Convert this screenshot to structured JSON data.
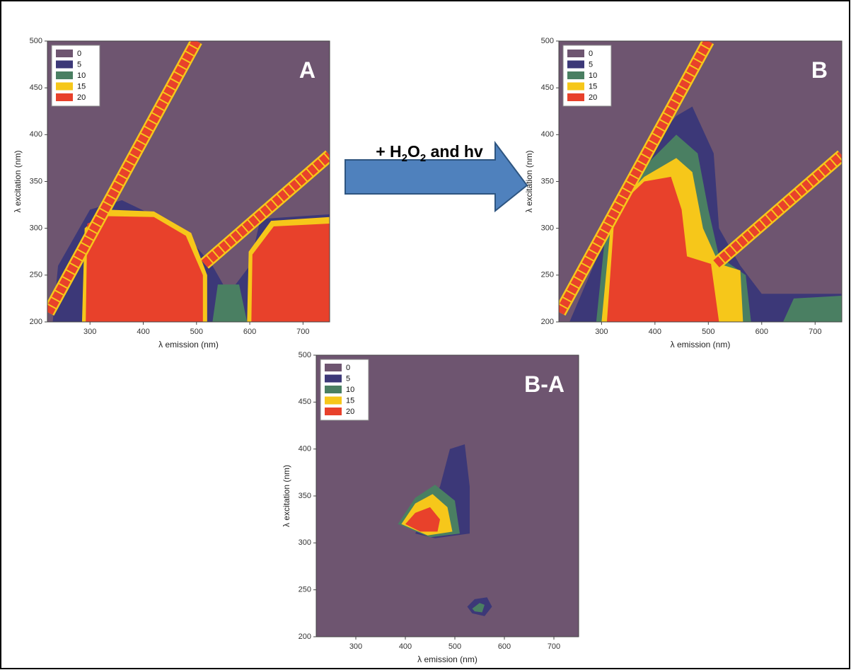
{
  "chart_data": [
    {
      "type": "contour",
      "title": "A",
      "x_label": "λ emission (nm)",
      "y_label": "λ excitation (nm)",
      "xlim": [
        220,
        750
      ],
      "ylim": [
        200,
        500
      ],
      "xticks": [
        300,
        400,
        500,
        600,
        700
      ],
      "yticks": [
        200,
        250,
        300,
        350,
        400,
        450,
        500
      ],
      "levels": [
        0,
        5,
        10,
        15,
        20
      ],
      "level_colors": [
        "#6e5570",
        "#3c3878",
        "#4a7f62",
        "#f6c71a",
        "#e8412b"
      ]
    },
    {
      "type": "contour",
      "title": "B",
      "x_label": "λ emission (nm)",
      "y_label": "λ excitation (nm)",
      "xlim": [
        220,
        750
      ],
      "ylim": [
        200,
        500
      ],
      "xticks": [
        300,
        400,
        500,
        600,
        700
      ],
      "yticks": [
        200,
        250,
        300,
        350,
        400,
        450,
        500
      ],
      "levels": [
        0,
        5,
        10,
        15,
        20
      ],
      "level_colors": [
        "#6e5570",
        "#3c3878",
        "#4a7f62",
        "#f6c71a",
        "#e8412b"
      ]
    },
    {
      "type": "contour",
      "title": "B-A",
      "x_label": "λ emission (nm)",
      "y_label": "λ excitation (nm)",
      "xlim": [
        220,
        750
      ],
      "ylim": [
        200,
        500
      ],
      "xticks": [
        300,
        400,
        500,
        600,
        700
      ],
      "yticks": [
        200,
        250,
        300,
        350,
        400,
        450,
        500
      ],
      "levels": [
        0,
        5,
        10,
        15,
        20
      ],
      "level_colors": [
        "#6e5570",
        "#3c3878",
        "#4a7f62",
        "#f6c71a",
        "#e8412b"
      ]
    }
  ],
  "arrow_label": [
    "+ H",
    "2",
    "O",
    "2",
    " and hv"
  ]
}
